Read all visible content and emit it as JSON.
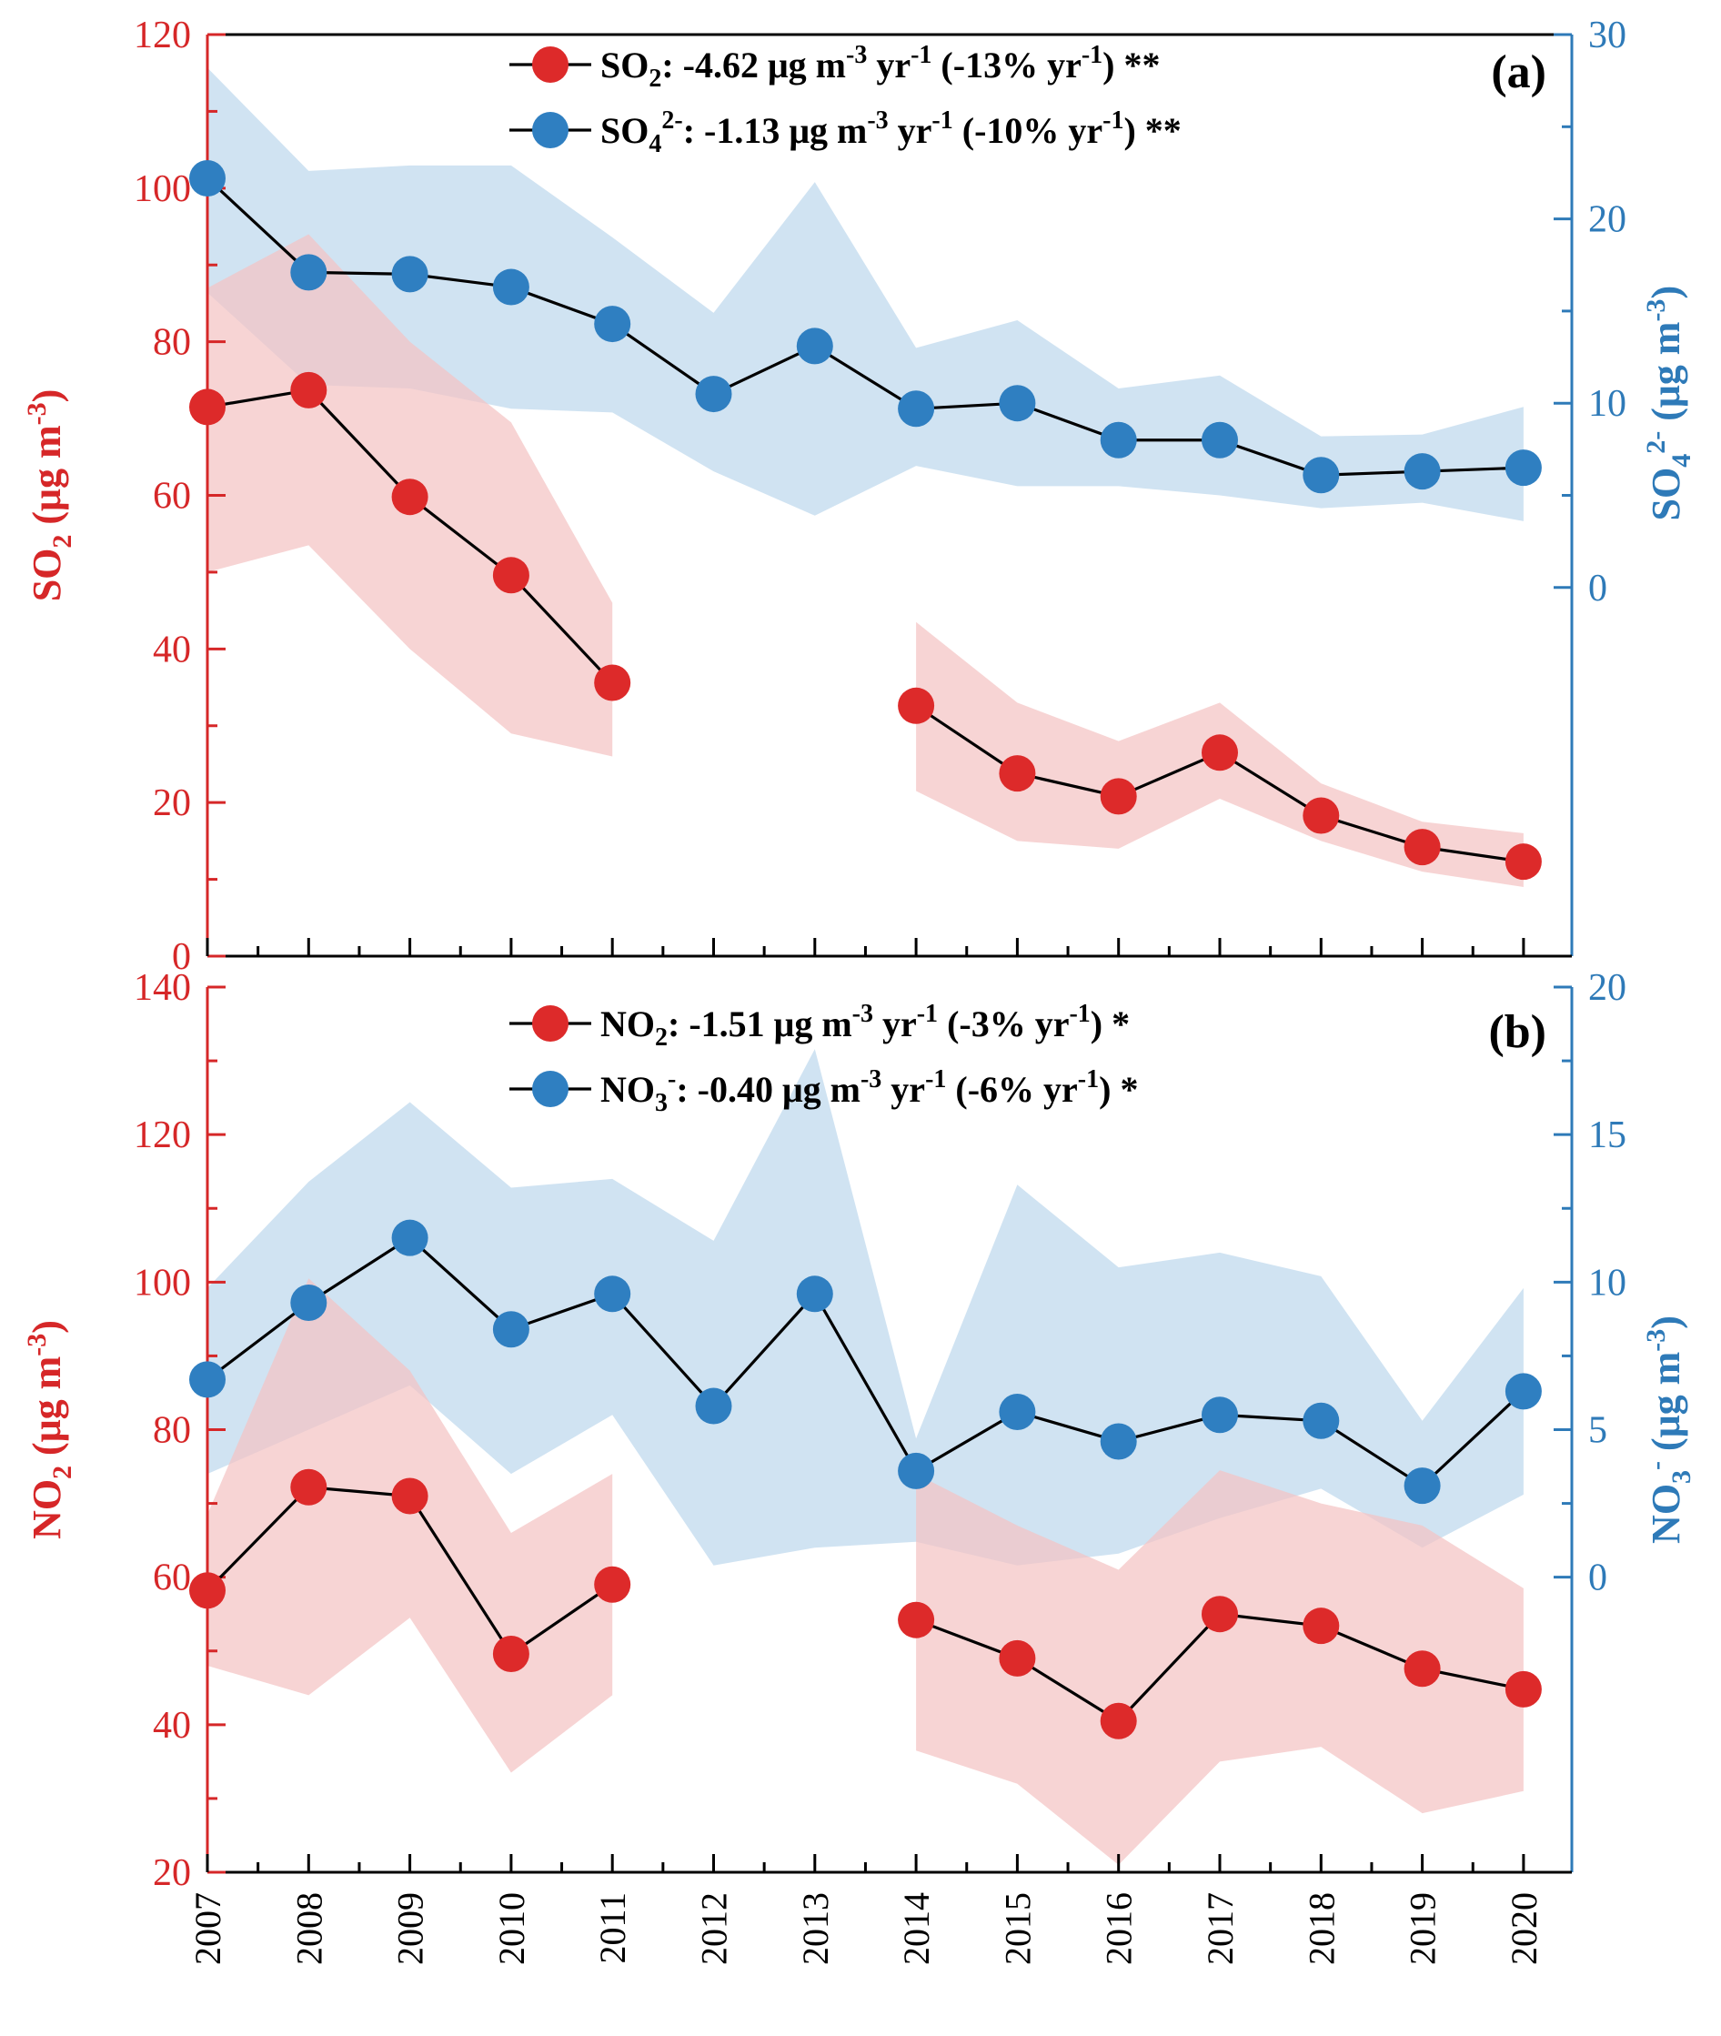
{
  "colors": {
    "red": "#d62728",
    "blue": "#2e7ab8",
    "red_band": "#f4c4c4",
    "blue_band": "#c3dbee",
    "marker_red": "#dd2a2a",
    "marker_blue": "#2f7fc1"
  },
  "chart_data": [
    {
      "type": "line",
      "panel_label": "(a)",
      "x": [
        2007,
        2008,
        2009,
        2010,
        2011,
        2012,
        2013,
        2014,
        2015,
        2016,
        2017,
        2018,
        2019,
        2020
      ],
      "x_tick_labels": [
        "2007",
        "2008",
        "2009",
        "2010",
        "2011",
        "2012",
        "2013",
        "2014",
        "2015",
        "2016",
        "2017",
        "2018",
        "2019",
        "2020"
      ],
      "left_axis": {
        "label_main": "SO",
        "label_sub": "2",
        "label_unit": " (μg m",
        "label_sup": "-3",
        "label_close": ")",
        "ylim": [
          0,
          120
        ],
        "ticks": [
          "0",
          "20",
          "40",
          "60",
          "80",
          "100",
          "120"
        ]
      },
      "right_axis": {
        "label_main": "SO",
        "label_sub": "4",
        "label_sup_ion": "2-",
        "label_unit": " (μg m",
        "label_sup": "-3",
        "label_close": ")",
        "ylim": [
          -20,
          30
        ],
        "ticks": [
          "0",
          "10",
          "20",
          "30"
        ]
      },
      "series": [
        {
          "name": "SO2",
          "axis": "left",
          "legend": {
            "main": "SO",
            "sub": "2",
            "sup_ion": "",
            "rest": ": -4.62 μg m",
            "sup1": "-3",
            "mid": " yr",
            "sup2": "-1",
            "mid2": " (-13% yr",
            "sup3": "-1",
            "end": ") **"
          },
          "values": [
            71.5,
            73.7,
            59.8,
            49.6,
            35.6,
            null,
            null,
            32.6,
            23.8,
            20.8,
            26.5,
            18.3,
            14.2,
            12.3
          ],
          "band_upper": [
            87,
            94,
            80,
            69.5,
            46,
            null,
            null,
            43.5,
            33,
            28,
            33,
            22.5,
            17.5,
            16
          ],
          "band_lower": [
            50,
            53.5,
            40,
            29,
            26,
            null,
            null,
            21.5,
            15,
            14,
            20.5,
            15,
            11,
            9
          ]
        },
        {
          "name": "SO4 2-",
          "axis": "right",
          "legend": {
            "main": "SO",
            "sub": "4",
            "sup_ion": "2-",
            "rest": ": -1.13 μg m",
            "sup1": "-3",
            "mid": " yr",
            "sup2": "-1",
            "mid2": " (-10% yr",
            "sup3": "-1",
            "end": ") **"
          },
          "values": [
            22.2,
            17.1,
            17.0,
            16.3,
            14.3,
            10.5,
            13.1,
            9.7,
            10.0,
            8.0,
            8.0,
            6.1,
            6.3,
            6.5
          ],
          "band_upper": [
            28.2,
            22.6,
            22.9,
            22.9,
            19,
            14.9,
            22,
            13,
            14.5,
            10.8,
            11.5,
            8.2,
            8.3,
            9.8
          ],
          "band_lower": [
            16,
            11,
            10.8,
            9.7,
            9.5,
            6.3,
            3.9,
            6.6,
            5.5,
            5.5,
            5,
            4.3,
            4.6,
            3.6
          ]
        }
      ]
    },
    {
      "type": "line",
      "panel_label": "(b)",
      "x": [
        2007,
        2008,
        2009,
        2010,
        2011,
        2012,
        2013,
        2014,
        2015,
        2016,
        2017,
        2018,
        2019,
        2020
      ],
      "x_tick_labels": [
        "2007",
        "2008",
        "2009",
        "2010",
        "2011",
        "2012",
        "2013",
        "2014",
        "2015",
        "2016",
        "2017",
        "2018",
        "2019",
        "2020"
      ],
      "left_axis": {
        "label_main": "NO",
        "label_sub": "2",
        "label_unit": " (μg m",
        "label_sup": "-3",
        "label_close": ")",
        "ylim": [
          20,
          140
        ],
        "ticks": [
          "20",
          "40",
          "60",
          "80",
          "100",
          "120",
          "140"
        ]
      },
      "right_axis": {
        "label_main": "NO",
        "label_sub": "3",
        "label_sup_ion": "-",
        "label_unit": " (μg m",
        "label_sup": "-3",
        "label_close": ")",
        "ylim": [
          -10,
          20
        ],
        "ticks": [
          "0",
          "5",
          "10",
          "15",
          "20"
        ]
      },
      "series": [
        {
          "name": "NO2",
          "axis": "left",
          "legend": {
            "main": "NO",
            "sub": "2",
            "sup_ion": "",
            "rest": ": -1.51 μg m",
            "sup1": "-3",
            "mid": " yr",
            "sup2": "-1",
            "mid2": " (-3% yr",
            "sup3": "-1",
            "end": ") *"
          },
          "values": [
            58.2,
            72.2,
            71.0,
            49.6,
            59.0,
            null,
            null,
            54.2,
            49.0,
            40.5,
            55.0,
            53.4,
            47.6,
            44.8
          ],
          "band_upper": [
            68.5,
            100.5,
            88,
            66,
            74,
            null,
            null,
            74,
            67,
            61,
            74.5,
            70,
            67,
            58.5
          ],
          "band_lower": [
            48,
            44,
            54.5,
            33.5,
            44,
            null,
            null,
            36.5,
            32,
            21,
            35,
            37,
            28,
            31
          ]
        },
        {
          "name": "NO3 -",
          "axis": "right",
          "legend": {
            "main": "NO",
            "sub": "3",
            "sup_ion": "-",
            "rest": ": -0.40 μg m",
            "sup1": "-3",
            "mid": " yr",
            "sup2": "-1",
            "mid2": " (-6% yr",
            "sup3": "-1",
            "end": ") *"
          },
          "values": [
            6.7,
            9.3,
            11.5,
            8.4,
            9.6,
            5.8,
            9.6,
            3.6,
            5.6,
            4.6,
            5.5,
            5.3,
            3.1,
            6.3
          ],
          "band_upper": [
            9.8,
            13.4,
            16.1,
            13.2,
            13.5,
            11.4,
            17.9,
            4.7,
            13.3,
            10.5,
            11,
            10.2,
            5.3,
            9.8
          ],
          "band_lower": [
            3.5,
            5,
            6.5,
            3.5,
            5.5,
            0.4,
            1,
            1.2,
            0.4,
            0.8,
            2,
            3,
            1,
            2.8
          ]
        }
      ]
    }
  ]
}
